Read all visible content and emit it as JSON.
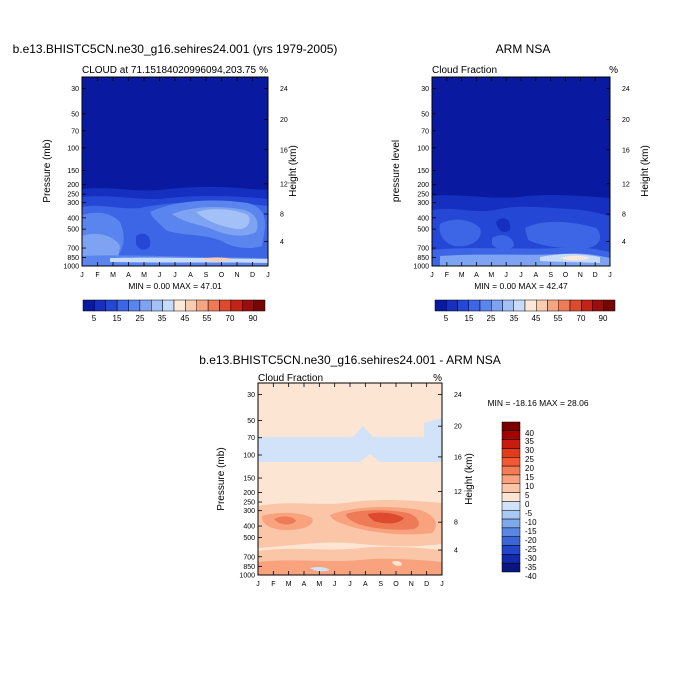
{
  "chart_data": [
    {
      "type": "heatmap",
      "title": "b.e13.BHISTC5CN.ne30_g16.sehires24.001 (yrs 1979-2005)",
      "subtitle": "CLOUD at 71.15184020996094,203.75",
      "units": "%",
      "ylabel": "Pressure (mb)",
      "ylabel_right": "Height (km)",
      "months": [
        "J",
        "F",
        "M",
        "A",
        "M",
        "J",
        "J",
        "A",
        "S",
        "O",
        "N",
        "D",
        "J"
      ],
      "pressure_ticks": [
        "30",
        "50",
        "70",
        "100",
        "150",
        "200",
        "250",
        "300",
        "400",
        "500",
        "700",
        "850",
        "1000"
      ],
      "height_ticks": [
        "24",
        "20",
        "16",
        "12",
        "8",
        "4"
      ],
      "minmax": "MIN =   0.00 MAX =  47.01",
      "min": 0.0,
      "max": 47.01,
      "colorbar_labels": [
        "5",
        "15",
        "25",
        "35",
        "45",
        "55",
        "70",
        "90"
      ]
    },
    {
      "type": "heatmap",
      "title": "ARM NSA",
      "subtitle": "Cloud Fraction",
      "units": "%",
      "ylabel": "pressure level",
      "ylabel_right": "Height (km)",
      "months": [
        "J",
        "F",
        "M",
        "A",
        "M",
        "J",
        "J",
        "A",
        "S",
        "O",
        "N",
        "D",
        "J"
      ],
      "pressure_ticks": [
        "30",
        "50",
        "70",
        "100",
        "150",
        "200",
        "250",
        "300",
        "400",
        "500",
        "700",
        "850",
        "1000"
      ],
      "height_ticks": [
        "24",
        "20",
        "16",
        "12",
        "8",
        "4"
      ],
      "minmax": "MIN =   0.00 MAX =  42.47",
      "min": 0.0,
      "max": 42.47,
      "colorbar_labels": [
        "5",
        "15",
        "25",
        "35",
        "45",
        "55",
        "70",
        "90"
      ]
    },
    {
      "type": "heatmap",
      "title": "b.e13.BHISTC5CN.ne30_g16.sehires24.001 - ARM NSA",
      "subtitle": "Cloud Fraction",
      "units": "%",
      "ylabel": "Pressure (mb)",
      "ylabel_right": "Height (km)",
      "months": [
        "J",
        "F",
        "M",
        "A",
        "M",
        "J",
        "J",
        "A",
        "S",
        "O",
        "N",
        "D",
        "J"
      ],
      "pressure_ticks": [
        "30",
        "50",
        "70",
        "100",
        "150",
        "200",
        "250",
        "300",
        "400",
        "500",
        "700",
        "850",
        "1000"
      ],
      "height_ticks": [
        "24",
        "20",
        "16",
        "12",
        "8",
        "4"
      ],
      "minmax": "MIN = -18.16 MAX =  28.06",
      "min": -18.16,
      "max": 28.06,
      "colorbar_labels": [
        "40",
        "35",
        "30",
        "25",
        "20",
        "15",
        "10",
        "5",
        "0",
        "-5",
        "-10",
        "-15",
        "-20",
        "-25",
        "-30",
        "-35",
        "-40"
      ]
    }
  ],
  "colors": {
    "abs_scale": [
      "#0a1aa0",
      "#1530c0",
      "#2547d6",
      "#3d66e6",
      "#5b85ee",
      "#7ea3f2",
      "#a3c1f7",
      "#c7dcfb",
      "#fde9d8",
      "#fbcdb0",
      "#f6a583",
      "#ee7a58",
      "#dd4a2e",
      "#c22418",
      "#9e0d0d",
      "#760606"
    ],
    "diff_scale": [
      "#7a0000",
      "#a50000",
      "#c81c0c",
      "#e23c1c",
      "#f05a33",
      "#f57d55",
      "#f8a27e",
      "#fbc6a8",
      "#fde5d4",
      "#d2e3f9",
      "#a9c8f3",
      "#7fa9ec",
      "#5a87e3",
      "#3a66d8",
      "#2146c8",
      "#1129ad",
      "#0a1580"
    ]
  }
}
